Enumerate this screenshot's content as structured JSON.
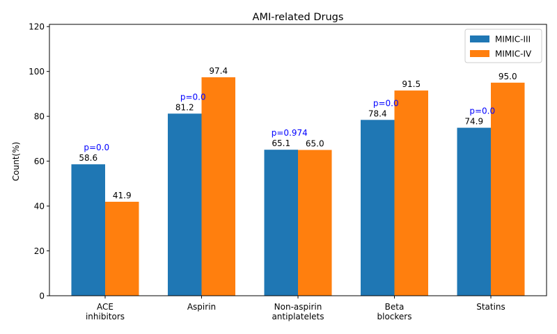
{
  "chart_data": {
    "type": "bar",
    "title": "AMI-related Drugs",
    "xlabel": "",
    "ylabel": "Count(%)",
    "ylim": [
      0,
      121
    ],
    "yticks": [
      0,
      20,
      40,
      60,
      80,
      100,
      120
    ],
    "categories": [
      [
        "ACE",
        "inhibitors"
      ],
      [
        "Aspirin"
      ],
      [
        "Non-aspirin",
        "antiplatelets"
      ],
      [
        "Beta",
        "blockers"
      ],
      [
        "Statins"
      ]
    ],
    "series": [
      {
        "name": "MIMIC-III",
        "color": "#1f77b4",
        "values": [
          58.6,
          81.2,
          65.1,
          78.4,
          74.9
        ],
        "labels": [
          "58.6",
          "81.2",
          "65.1",
          "78.4",
          "74.9"
        ]
      },
      {
        "name": "MIMIC-IV",
        "color": "#ff7f0e",
        "values": [
          41.9,
          97.4,
          65.0,
          91.5,
          95.0
        ],
        "labels": [
          "41.9",
          "97.4",
          "65.0",
          "91.5",
          "95.0"
        ]
      }
    ],
    "p_values": [
      "p=0.0",
      "p=0.0",
      "p=0.974",
      "p=0.0",
      "p=0.0"
    ],
    "p_value_color": "#0000ff",
    "grid": false,
    "legend_position": "top-right"
  }
}
